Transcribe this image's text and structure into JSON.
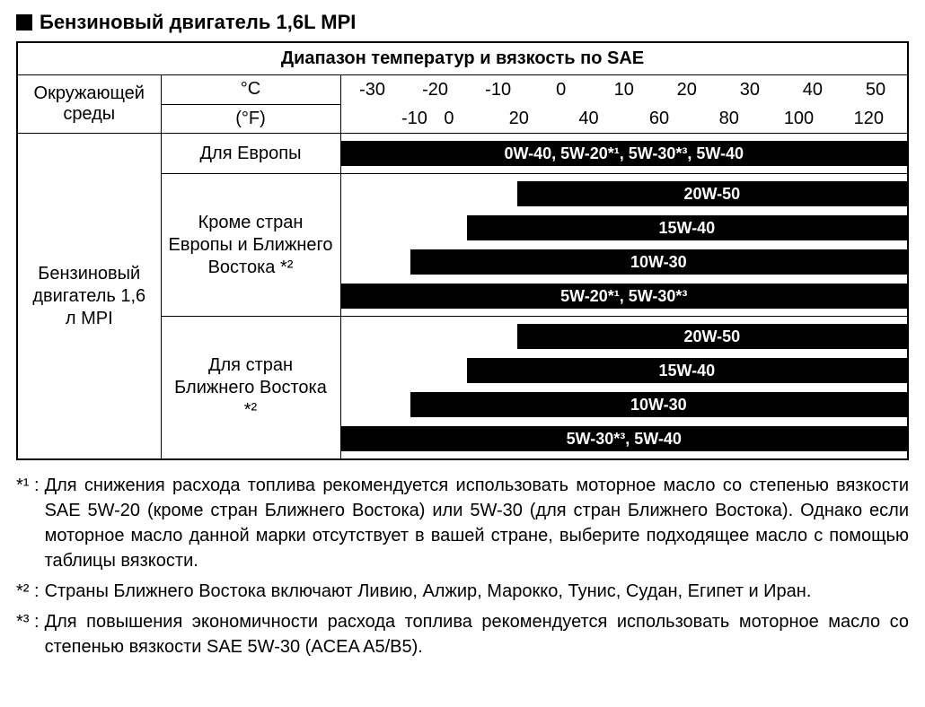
{
  "title": "Бензиновый двигатель 1,6L MPI",
  "table_title": "Диапазон температур и вязкость по SAE",
  "ambient_label": "Окружающей среды",
  "engine_label": "Бензиновый двигатель 1,6 л MPI",
  "units": {
    "c": "°C",
    "f": "(°F)"
  },
  "scale": {
    "min": -35,
    "max": 55,
    "c_ticks": [
      -30,
      -20,
      -10,
      0,
      10,
      20,
      30,
      40,
      50
    ],
    "f_ticks": [
      {
        "c": -23.3,
        "label": "-10"
      },
      {
        "c": -17.8,
        "label": "0"
      },
      {
        "c": -6.7,
        "label": "20"
      },
      {
        "c": 4.4,
        "label": "40"
      },
      {
        "c": 15.6,
        "label": "60"
      },
      {
        "c": 26.7,
        "label": "80"
      },
      {
        "c": 37.8,
        "label": "100"
      },
      {
        "c": 48.9,
        "label": "120"
      }
    ]
  },
  "bar_style": {
    "height": 28,
    "gap": 10,
    "top_pad": 8,
    "bg": "#000000",
    "fg": "#ffffff",
    "font_size": 18
  },
  "groups": [
    {
      "region": "Для Европы",
      "bars": [
        {
          "label": "0W-40, 5W-20*¹, 5W-30*³, 5W-40",
          "from": -35,
          "to": 55
        }
      ]
    },
    {
      "region": "Кроме стран Европы и Ближнего Востока *²",
      "bars": [
        {
          "label": "20W-50",
          "from": -7,
          "to": 55
        },
        {
          "label": "15W-40",
          "from": -15,
          "to": 55
        },
        {
          "label": "10W-30",
          "from": -24,
          "to": 55
        },
        {
          "label": "5W-20*¹, 5W-30*³",
          "from": -35,
          "to": 55
        }
      ]
    },
    {
      "region": "Для стран Ближнего Востока *²",
      "bars": [
        {
          "label": "20W-50",
          "from": -7,
          "to": 55
        },
        {
          "label": "15W-40",
          "from": -15,
          "to": 55
        },
        {
          "label": "10W-30",
          "from": -24,
          "to": 55
        },
        {
          "label": "5W-30*³, 5W-40",
          "from": -35,
          "to": 55
        }
      ]
    }
  ],
  "footnotes": [
    {
      "marker": "*¹ :",
      "text": "Для снижения расхода топлива рекомендуется использовать моторное масло со степенью вязкости SAE 5W-20 (кроме стран Ближнего Востока) или 5W-30 (для стран Ближнего Востока). Однако если моторное масло данной марки отсутствует в вашей стране, выберите подходящее масло с помощью таблицы вязкости."
    },
    {
      "marker": "*² :",
      "text": "Страны Ближнего Востока включают Ливию, Алжир, Марокко, Тунис, Судан, Египет и Иран."
    },
    {
      "marker": "*³ :",
      "text": "Для повышения экономичности расхода топлива рекомендуется использовать моторное масло со степенью вязкости SAE 5W-30 (ACEA A5/B5)."
    }
  ]
}
